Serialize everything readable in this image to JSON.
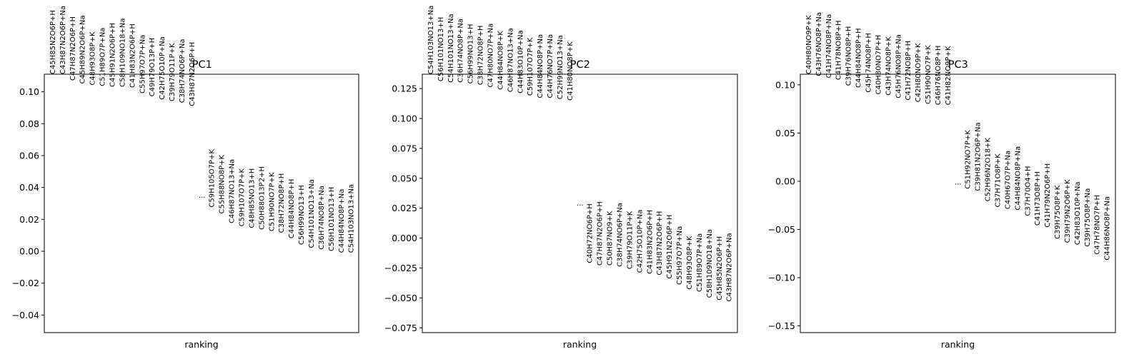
{
  "chart_data": [
    {
      "type": "scatter",
      "title": "PC1",
      "xlabel": "ranking",
      "ylabel": "",
      "ylim": [
        -0.051,
        0.111
      ],
      "yticks": [
        -0.04,
        -0.02,
        0.0,
        0.02,
        0.04,
        0.06,
        0.08,
        0.1
      ],
      "ytick_labels": [
        "−0.04",
        "−0.02",
        "0.00",
        "0.02",
        "0.04",
        "0.06",
        "0.08",
        "0.10"
      ],
      "ellipsis": "...",
      "ellipsis_y": 0.035,
      "top": [
        {
          "label": "C45H85N2O6P+H",
          "value": 0.111
        },
        {
          "label": "C43H87N2O6P+Na",
          "value": 0.111
        },
        {
          "label": "C47H87N2O6P+H",
          "value": 0.107
        },
        {
          "label": "C45H89N2O6P+Na",
          "value": 0.105
        },
        {
          "label": "C48H93O8P+K",
          "value": 0.104
        },
        {
          "label": "C51H89O7P+Na",
          "value": 0.1035
        },
        {
          "label": "C45H91N2O6P+H",
          "value": 0.103
        },
        {
          "label": "C58H109NO18+Na",
          "value": 0.103
        },
        {
          "label": "C41H83N2O6P+H",
          "value": 0.1025
        },
        {
          "label": "C55H97O7P+Na",
          "value": 0.099
        },
        {
          "label": "C49H79O13P+H",
          "value": 0.097
        },
        {
          "label": "C42H75O10P+Na",
          "value": 0.095
        },
        {
          "label": "C39H79O11P+K",
          "value": 0.094
        },
        {
          "label": "C38H74NO6P+Na",
          "value": 0.093
        },
        {
          "label": "C43H87N2O6P+H",
          "value": 0.091
        }
      ],
      "bottom": [
        {
          "label": "C59H105O7P+K",
          "value": 0.0275
        },
        {
          "label": "C55H88NO8P+K",
          "value": 0.0235
        },
        {
          "label": "C46H87NO13+Na",
          "value": 0.0175
        },
        {
          "label": "C59H107O7P+K",
          "value": 0.0155
        },
        {
          "label": "C48H85NO13+H",
          "value": 0.0145
        },
        {
          "label": "C50H88O13P2+H",
          "value": 0.0135
        },
        {
          "label": "C51H90NO7P+K",
          "value": 0.0125
        },
        {
          "label": "C38H72NO8P+H",
          "value": 0.0115
        },
        {
          "label": "C44H84NO8P+H",
          "value": 0.008
        },
        {
          "label": "C56H99NO13+H",
          "value": 0.004
        },
        {
          "label": "C54H101NO13+Na",
          "value": 0.002
        },
        {
          "label": "C36H74NO8P+Na",
          "value": 0.001
        },
        {
          "label": "C56H101NO13+H",
          "value": 0.0
        },
        {
          "label": "C44H84NO8P+Na",
          "value": -0.001
        },
        {
          "label": "C54H103NO13+Na",
          "value": -0.001
        }
      ]
    },
    {
      "type": "scatter",
      "title": "PC2",
      "xlabel": "ranking",
      "ylabel": "",
      "ylim": [
        -0.079,
        0.137
      ],
      "yticks": [
        -0.075,
        -0.05,
        -0.025,
        0.0,
        0.025,
        0.05,
        0.075,
        0.1,
        0.125
      ],
      "ytick_labels": [
        "−0.075",
        "−0.050",
        "−0.025",
        "0.000",
        "0.025",
        "0.050",
        "0.075",
        "0.100",
        "0.125"
      ],
      "ellipsis": "...",
      "ellipsis_y": 0.029,
      "top": [
        {
          "label": "C54H103NO13+Na",
          "value": 0.137
        },
        {
          "label": "C56H101NO13+H",
          "value": 0.131
        },
        {
          "label": "C54H101NO13+Na",
          "value": 0.13
        },
        {
          "label": "C36H74NO8P+Na",
          "value": 0.13
        },
        {
          "label": "C56H99NO13+H",
          "value": 0.129
        },
        {
          "label": "C38H72NO8P+H",
          "value": 0.128
        },
        {
          "label": "C47H80NO7P+Na",
          "value": 0.126
        },
        {
          "label": "C44H84NO8P+K",
          "value": 0.124
        },
        {
          "label": "C46H87NO13+Na",
          "value": 0.122
        },
        {
          "label": "C44H83O10P+Na",
          "value": 0.121
        },
        {
          "label": "C59H107O7P+K",
          "value": 0.119
        },
        {
          "label": "C44H84NO8P+Na",
          "value": 0.117
        },
        {
          "label": "C44H76NO7P+Na",
          "value": 0.117
        },
        {
          "label": "C52H99NO13+Na",
          "value": 0.116
        },
        {
          "label": "C41H80NO8P+K",
          "value": 0.115
        }
      ],
      "bottom": [
        {
          "label": "C40H72NO6P+H",
          "value": -0.021
        },
        {
          "label": "C47H87N2O6P+H",
          "value": -0.023
        },
        {
          "label": "C50H87NO9+K",
          "value": -0.023
        },
        {
          "label": "C38H74NO6P+Na",
          "value": -0.024
        },
        {
          "label": "C39H79O11P+K",
          "value": -0.026
        },
        {
          "label": "C42H75O10P+Na",
          "value": -0.029
        },
        {
          "label": "C41H83N2O6P+H",
          "value": -0.03
        },
        {
          "label": "C43H87N2O6P+H",
          "value": -0.031
        },
        {
          "label": "C45H91N2O6P+H",
          "value": -0.034
        },
        {
          "label": "C55H97O7P+Na",
          "value": -0.039
        },
        {
          "label": "C48H93O8P+K",
          "value": -0.043
        },
        {
          "label": "C51H89O7P+Na",
          "value": -0.045
        },
        {
          "label": "C58H109NO18+Na",
          "value": -0.05
        },
        {
          "label": "C45H85N2O6P+H",
          "value": -0.052
        },
        {
          "label": "C43H87N2O6P+Na",
          "value": -0.053
        }
      ]
    },
    {
      "type": "scatter",
      "title": "PC3",
      "xlabel": "ranking",
      "ylabel": "",
      "ylim": [
        -0.157,
        0.111
      ],
      "yticks": [
        -0.15,
        -0.1,
        -0.05,
        0.0,
        0.05,
        0.1
      ],
      "ytick_labels": [
        "−0.15",
        "−0.10",
        "−0.05",
        "0.00",
        "0.05",
        "0.10"
      ],
      "ellipsis": "...",
      "ellipsis_y": -0.001,
      "top": [
        {
          "label": "C40H80NO9P+K",
          "value": 0.111
        },
        {
          "label": "C43H76NO8P+Na",
          "value": 0.109
        },
        {
          "label": "C41H74NO8P+Na",
          "value": 0.107
        },
        {
          "label": "C41H78NO8P+H",
          "value": 0.105
        },
        {
          "label": "C39H76NO8P+H",
          "value": 0.099
        },
        {
          "label": "C44H84NO8P+H",
          "value": 0.097
        },
        {
          "label": "C45H74NO8P+H",
          "value": 0.092
        },
        {
          "label": "C40H80NO7P+H",
          "value": 0.09
        },
        {
          "label": "C43H74NO8P+K",
          "value": 0.089
        },
        {
          "label": "C45H76NO8P+Na",
          "value": 0.086
        },
        {
          "label": "C41H72NO8P+H",
          "value": 0.084
        },
        {
          "label": "C42H80NO9P+K",
          "value": 0.082
        },
        {
          "label": "C51H90NO7P+K",
          "value": 0.08
        },
        {
          "label": "C46H76NO8P+H",
          "value": 0.079
        },
        {
          "label": "C41H82NO9P+K",
          "value": 0.079
        }
      ],
      "bottom": [
        {
          "label": "C51H92NO7P+K",
          "value": -0.008
        },
        {
          "label": "C39H81N2O6P+Na",
          "value": -0.01
        },
        {
          "label": "C52H96N2O18+K",
          "value": -0.021
        },
        {
          "label": "C37H71O8P+K",
          "value": -0.027
        },
        {
          "label": "C40H67O7P+Na",
          "value": -0.029
        },
        {
          "label": "C44H84NO8P+Na",
          "value": -0.03
        },
        {
          "label": "C37H70O4+H",
          "value": -0.036
        },
        {
          "label": "C41H73O8P+H",
          "value": -0.046
        },
        {
          "label": "C41H79N2O6P+H",
          "value": -0.048
        },
        {
          "label": "C39H75O8P+K",
          "value": -0.06
        },
        {
          "label": "C39H79N2O6P+K",
          "value": -0.064
        },
        {
          "label": "C42H83O10P+Na",
          "value": -0.066
        },
        {
          "label": "C39H75O8P+Na",
          "value": -0.068
        },
        {
          "label": "C47H78NO7P+H",
          "value": -0.076
        },
        {
          "label": "C44H86NO8P+Na",
          "value": -0.082
        }
      ]
    }
  ]
}
